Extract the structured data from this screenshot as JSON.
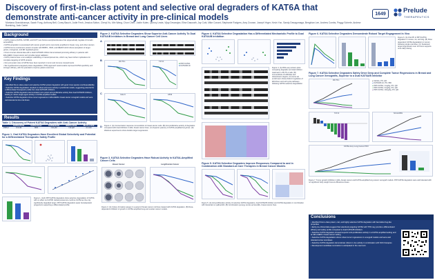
{
  "header": {
    "title": "Discovery of first-in-class potent and selective oral degraders of KAT6A that demonstrate anti-cancer activity in pre-clinical models",
    "authors": "Montana Grandchamps, Sarah Fong, Anthony Bell, Corey Bauch, Jodie Fenh, Jessica Sutton, Cheryl Xu, Min Wang, Chun Chen, Justin Kulen, Quincy Lewis, Vijay Devarajan, Elise Dasurath, Jay Cobi, Mike Conant, Stephanie Rodgers, Amy Crowse, Joseph Yeger, Kevin Yon, Sandy Desagomaga, Benghian Lee, Andrew Combs, Peggy Scherle, Andrew Buesking, Jack Carter",
    "poster_number": "1649",
    "logo_word": "Prelude",
    "logo_sub": "THERAPEUTICS"
  },
  "colors": {
    "navy": "#1f3c78",
    "green": "#2e9a46",
    "blue": "#2c63c7",
    "purple": "#7a3aa0"
  },
  "col1": {
    "background_head": "Background",
    "background_bullets": [
      "KAT6 proteins (KAT6A, KAT6B, and KAT7) are histone acetyltransferases that epigenetically regulate chromatin accessibility",
      "KAT6A acquisition is associated with cancer growth and is recurrently amplified in breast, lung, and other cancers",
      "KAT6A forms a tetrameric protein complex with BRPF1, ING5, and MEAF6 which drives acetylation of target genes, oncogenes, and ER regulated genes",
      "First-in-human clinical data with a dual KAT6A/B inhibitor demonstrated promising efficacy in patients with ER+/HER2- breast cancer and provides target validation",
      "KAT6 proteins have a non-catalytic scaffolding or transcriptional role, which may have further implications for complete targeting of KAT6 proteins",
      "Non-enzymatic roles of KAT6A have been reported in tumor and immune compartments",
      "We hypothesized a targeted protein degradation (TPD) approach would enable improved KAT6A specificity and stronger efficacy, with the potential to improve patient outcomes"
    ],
    "keyfind_head": "Key Findings",
    "keyfind_bullets": [
      "Identified first-in-class potent and selective KAT6A protein degraders with good cross species oral bioavailability",
      "Selective KAT6A degradation resulted in robust anti-tumor activity in preclinical models, suggesting potential for a differentiated therapeutic profile from dual KAT6A/B inhibitors",
      "Selective KAT6A degraders demonstrated more potent anti-proliferative activity than dual KAT6A/B inhibitors, leading to robust single-agent activity in KAT6A-amplified models",
      "Selective KAT6A degraders drove tumor regressions in ER+/HER2- breast cancer xenograft models and were well-tolerated at low oral doses"
    ],
    "results_head": "Results",
    "table_title": "Table 1. Discovery of Potent KAT6A Degraders with Anti-Cancer Activity",
    "table_headers": [
      "",
      "KAT6A DC50",
      "KAT6A Dmax",
      "KAT6B DC50",
      "BRPF1 DC50",
      "ZR-75-1 IC50"
    ],
    "table_row": [
      "PRT-2",
      "0.3 nM",
      "96%",
      ">10 μM",
      ">10 μM",
      "2.1 nM"
    ],
    "fig1_title": "Figure 1. Oral KAT6A Degraders Have Excellent Global Selectivity and Potential for a Differentiated Therapeutic Safety Profile",
    "fig1_caption": "Figure 1. (A-D) PRT-KAT6A degraders show selective degradation of KAT6A with no effect on KAT6B. Global proteomics confirms KAT6A as the only significantly degraded target. PRT-KAT6A degraders spare hematopoietic progenitors supporting a differentiated profile."
  },
  "col2": {
    "fig2_title": "Figure 2. KAT6A Selective Degraders Show Superior Anti-Cancer Activity To Dual KAT6A/B Inhibitors in Breast and Lung Cancer Cell Lines",
    "panel_labels": [
      "A",
      "B",
      "C",
      "D"
    ],
    "cell_lines": [
      "ZR-75-1",
      "T47-D",
      "Calu-6",
      "A549"
    ],
    "legend": [
      "PRT-KAT6A",
      "KAT6A/B inh"
    ],
    "fig2_caption": "Figure 2. (A) Concentration response immunoblots in breast cancer cells. (B) Anti-proliferative activity of degraders compared with dual inhibitors in ER+ breast cancer lines. (C) Superior potency in KAT6A-amplified lung lines. (D) Washout experiments show durable target suppression.",
    "fig3_title": "Figure 3. KAT6A Selective Degraders Have Robust Activity in KAT6A-Amplified Cancer Cells",
    "fig3_sub": [
      "Breast Cancer",
      "Lung/Ovarian Cancer"
    ],
    "fig3_caption": "Figure 3. (A) Colony formation assays in a panel of breast cancer cell lines treated with KAT6A degraders. (B) Dose-dependent inhibition of growth in KAT6A-amplified lung and ovarian cancer models."
  },
  "col3": {
    "fig4_title": "Figure 4. KAT6A Selective Degradation Has a Differentiated Mechanistic Profile to Dual KAT6A/B Inhibition",
    "fig4_caption": "Figure 4. (A) RNA-seq volcano plots comparing degrader and dual inhibitor treatment in ZR-75-1 cells. (B) Immunoblots of H3K23ac and downstream targets. (C) Gene set enrichment shows distinct regulation of ER-driven and cell cycle pathways following KAT6A selective degradation.",
    "fig5_title": "Figure 5. KAT6A Selective Degraders Improve Responses Compared to and in Combination with Standard-of-Care Therapies in Breast Cancer Models",
    "fig5_caption": "Figure 5. (A) Anti-proliferative activity of selective KAT6A degraders, dual KAT6A/B inhibitor and KAT6A degraders in combination with fulvestrant or palbociclib. (B) Combination synergy scores across ER+ breast cancer lines."
  },
  "col4": {
    "fig6_title": "Figure 6. KAT6A Selective Degraders Demonstrate Robust Target Engagement In Vivo",
    "fig6_caption": "Figure 6. (A) Oral PK of PRT-KAT6A degraders in mouse, rat, and dog. (B) Dose dependent KAT6A degradation in tumors following single oral dose. (C) Sustained target suppression over 24 hours supports once daily dosing.",
    "fig7_title": "Figure 7. KAT6A Selective Degraders Safely Drive Deep and Complete Tumor Regressions in Breast and Lung Cancer Xenografts, Superior to a Dual KAT6A/B Inhibitor",
    "fig7_legend": [
      "Vehicle, PO, QD",
      "KAT6A/B inh, PO, BID",
      "PRT-KAT6A, 1mg/kg, PO, QD",
      "PRT-KAT6A, 3mg/kg, PO, QD",
      "PRT-KAT6A, 10mg/kg, PO, QD"
    ],
    "fig7_panels": [
      "ZR-75-1",
      "T47-D",
      "NCI-H1581",
      "KAT6A-Amp Lung Cancer PDX"
    ],
    "fig7_caption": "Figure 7. Tumor growth inhibition in ER+ breast cancer and KAT6A-amplified lung cancer xenograft models. PRT-KAT6A degraders were well tolerated with no significant body weight loss at efficacious doses.",
    "conclusions_head": "Conclusions",
    "conclusions": [
      "Identified first-in-class potent, oral, and highly selective KAT6A degraders with favorable drug-like properties",
      "Early pre-clinical data suggest that selectively targeting KAT6A with TPD may provide a differentiated efficacy and safety profile compared to dual KAT6A/B inhibitors",
      "Selective KAT6A degraders showed superior anti-proliferative activity in a KAT6A-amplified setting and an ER+/HER2- breast cancer setting",
      "Selective KAT6A degradation drove robust tumor regressions in xenograft models and were well tolerated at low oral doses",
      "Selective KAT6A degraders demonstrate robust in vivo activity in combination with SOC therapies",
      "Development candidate nomination is anticipated in the near term"
    ]
  }
}
